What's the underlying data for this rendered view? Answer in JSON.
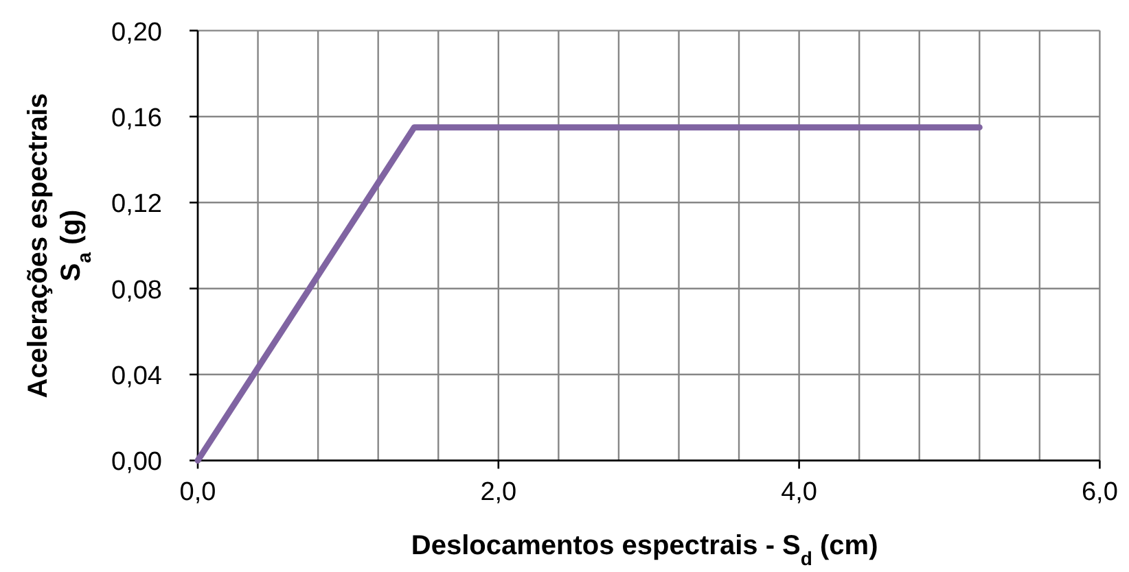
{
  "chart_data": {
    "type": "line",
    "xlabel": "Deslocamentos espectrais - S$_{d}$ (cm)",
    "ylabel": "Acelerações espectrais\nS$_{a}$ (g)",
    "x": [
      0,
      1.44,
      5.2
    ],
    "series": [
      {
        "color": "#8064a2",
        "values": [
          0,
          0.155,
          0.155
        ]
      }
    ],
    "xlim": [
      0,
      6
    ],
    "ylim": [
      0,
      0.2
    ],
    "xticks": [
      {
        "value": 0,
        "label": "0,0"
      },
      {
        "value": 0.4,
        "label": null
      },
      {
        "value": 0.8,
        "label": null
      },
      {
        "value": 1.2,
        "label": null
      },
      {
        "value": 1.6,
        "label": null
      },
      {
        "value": 2,
        "label": "2,0"
      },
      {
        "value": 2.4,
        "label": null
      },
      {
        "value": 2.8,
        "label": null
      },
      {
        "value": 3.2,
        "label": null
      },
      {
        "value": 3.6,
        "label": null
      },
      {
        "value": 4,
        "label": "4,0"
      },
      {
        "value": 4.4,
        "label": null
      },
      {
        "value": 4.8,
        "label": null
      },
      {
        "value": 5.2,
        "label": null
      },
      {
        "value": 5.6,
        "label": null
      },
      {
        "value": 6,
        "label": "6,0"
      }
    ],
    "yticks": [
      {
        "value": 0,
        "label": "0,00"
      },
      {
        "value": 0.04,
        "label": "0,04"
      },
      {
        "value": 0.08,
        "label": "0,08"
      },
      {
        "value": 0.12,
        "label": "0,12"
      },
      {
        "value": 0.16,
        "label": "0,16"
      },
      {
        "value": 0.2,
        "label": "0,20"
      }
    ],
    "grid": true,
    "marker": "none",
    "line_style": "solid"
  }
}
